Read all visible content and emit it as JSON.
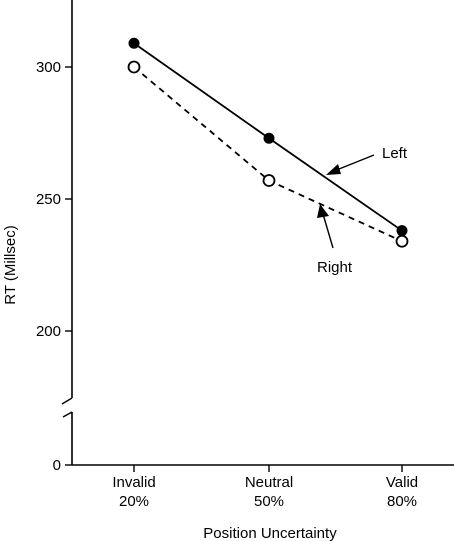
{
  "chart_data": {
    "type": "line",
    "title": "",
    "xlabel": "Position Uncertainty",
    "ylabel": "RT (Millsec)",
    "categories": [
      {
        "line1": "Invalid",
        "line2": "20%"
      },
      {
        "line1": "Neutral",
        "line2": "50%"
      },
      {
        "line1": "Valid",
        "line2": "80%"
      }
    ],
    "y_ticks": [
      {
        "value": 0,
        "label": "0"
      },
      {
        "value": 200,
        "label": "200"
      },
      {
        "value": 250,
        "label": "250"
      },
      {
        "value": 300,
        "label": "300"
      }
    ],
    "ylim": [
      200,
      340
    ],
    "y_axis_break": true,
    "series": [
      {
        "name": "Left",
        "values": [
          309,
          273,
          238
        ],
        "line_style": "solid",
        "marker": "filled-circle"
      },
      {
        "name": "Right",
        "values": [
          300,
          257,
          234
        ],
        "line_style": "dashed",
        "marker": "open-circle"
      }
    ],
    "annotations": [
      {
        "text": "Left",
        "series": "Left"
      },
      {
        "text": "Right",
        "series": "Right"
      }
    ],
    "colors": {
      "ink": "#000000",
      "background": "#ffffff"
    }
  }
}
